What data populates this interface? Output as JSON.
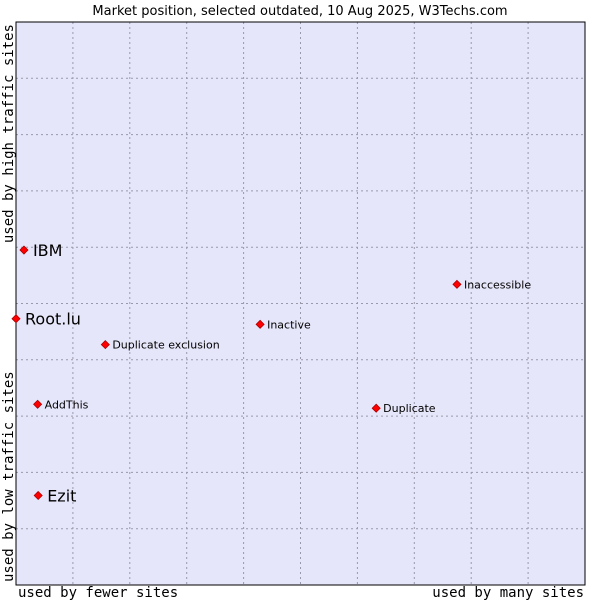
{
  "chart_data": {
    "type": "scatter",
    "title": "Market position, selected outdated, 10 Aug 2025, W3Techs.com",
    "xlabel_left": "used by fewer sites",
    "xlabel_right": "used by many sites",
    "ylabel_bottom": "used by low traffic sites",
    "ylabel_top": "used by high traffic sites",
    "xlim": [
      0,
      100
    ],
    "ylim": [
      0,
      100
    ],
    "grid": true,
    "colors": {
      "plot_background": "#e6e6fa",
      "grid": "#9999aa",
      "border": "#000000",
      "marker": "#ff0000",
      "marker_edge": "#aa0000"
    },
    "points": [
      {
        "label": "IBM",
        "x": 1.4,
        "y": 59.5,
        "size": "large"
      },
      {
        "label": "Root.lu",
        "x": 0.0,
        "y": 47.3,
        "size": "large"
      },
      {
        "label": "Ezit",
        "x": 3.9,
        "y": 15.9,
        "size": "large"
      },
      {
        "label": "Inaccessible",
        "x": 77.5,
        "y": 53.4,
        "size": "small"
      },
      {
        "label": "Inactive",
        "x": 42.9,
        "y": 46.3,
        "size": "small"
      },
      {
        "label": "Duplicate exclusion",
        "x": 15.7,
        "y": 42.7,
        "size": "small"
      },
      {
        "label": "AddThis",
        "x": 3.8,
        "y": 32.1,
        "size": "small"
      },
      {
        "label": "Duplicate",
        "x": 63.3,
        "y": 31.4,
        "size": "small"
      }
    ]
  }
}
